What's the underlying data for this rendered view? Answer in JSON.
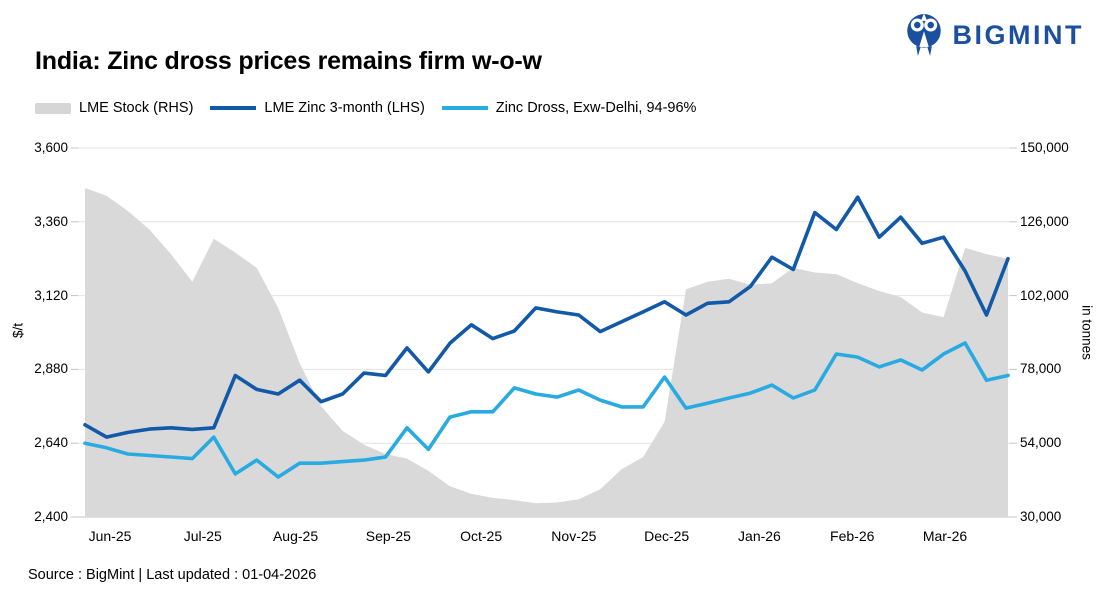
{
  "header": {
    "title": "India: Zinc dross prices remains firm w-o-w",
    "brand": "BIGMINT",
    "brand_color": "#1b4f9f"
  },
  "legend": [
    {
      "label": "LME Stock (RHS)",
      "color": "#d6d6d6",
      "type": "area"
    },
    {
      "label": "LME Zinc 3-month (LHS)",
      "color": "#1259a7",
      "type": "line"
    },
    {
      "label": "Zinc Dross, Exw-Delhi, 94-96%",
      "color": "#29abe2",
      "type": "line"
    }
  ],
  "footer": {
    "source": "Source : BigMint | Last updated : 01-04-2026"
  },
  "chart_data": {
    "type": "line",
    "title": "India: Zinc dross prices remains firm w-o-w",
    "x_tick_labels": [
      "Jun-25",
      "Jul-25",
      "Aug-25",
      "Sep-25",
      "Oct-25",
      "Nov-25",
      "Dec-25",
      "Jan-26",
      "Feb-26",
      "Mar-26"
    ],
    "grid": true,
    "legend_position": "top",
    "left_axis": {
      "label": "$/t",
      "min": 2400,
      "max": 3600,
      "ticks": [
        2400,
        2640,
        2880,
        3120,
        3360,
        3600
      ]
    },
    "right_axis": {
      "label": "in tonnes",
      "min": 30000,
      "max": 150000,
      "ticks": [
        30000,
        54000,
        78000,
        102000,
        126000,
        150000
      ]
    },
    "series": [
      {
        "name": "LME Stock (RHS)",
        "axis": "right",
        "style": "area",
        "color": "#d9d9d9",
        "values": [
          137000,
          134500,
          129500,
          123500,
          115500,
          106500,
          120500,
          116000,
          111000,
          98000,
          80000,
          66000,
          58000,
          53500,
          50500,
          49000,
          45000,
          40000,
          37500,
          36200,
          35500,
          34500,
          34700,
          35800,
          39000,
          45500,
          49500,
          61000,
          104000,
          106500,
          107500,
          105500,
          106000,
          111000,
          109500,
          109000,
          106000,
          103500,
          101500,
          96500,
          95000,
          117500,
          115500,
          114000
        ]
      },
      {
        "name": "LME Zinc 3-month (LHS)",
        "axis": "left",
        "style": "line",
        "color": "#1259a7",
        "values": [
          2700,
          2660,
          2675,
          2686,
          2690,
          2685,
          2690,
          2860,
          2815,
          2800,
          2845,
          2775,
          2800,
          2868,
          2860,
          2950,
          2872,
          2965,
          3025,
          2980,
          3005,
          3080,
          3067,
          3057,
          3003,
          3035,
          3067,
          3100,
          3057,
          3095,
          3100,
          3150,
          3245,
          3205,
          3390,
          3335,
          3440,
          3310,
          3375,
          3290,
          3310,
          3200,
          3057,
          3240
        ]
      },
      {
        "name": "Zinc Dross, Exw-Delhi, 94-96%",
        "axis": "left",
        "style": "line",
        "color": "#29abe2",
        "values": [
          2640,
          2625,
          2605,
          2600,
          2595,
          2590,
          2660,
          2540,
          2585,
          2530,
          2575,
          2575,
          2580,
          2585,
          2595,
          2690,
          2620,
          2725,
          2742,
          2742,
          2820,
          2800,
          2790,
          2813,
          2780,
          2758,
          2758,
          2855,
          2754,
          2770,
          2787,
          2803,
          2829,
          2787,
          2813,
          2930,
          2920,
          2888,
          2911,
          2878,
          2930,
          2966,
          2845,
          2860
        ]
      }
    ]
  }
}
